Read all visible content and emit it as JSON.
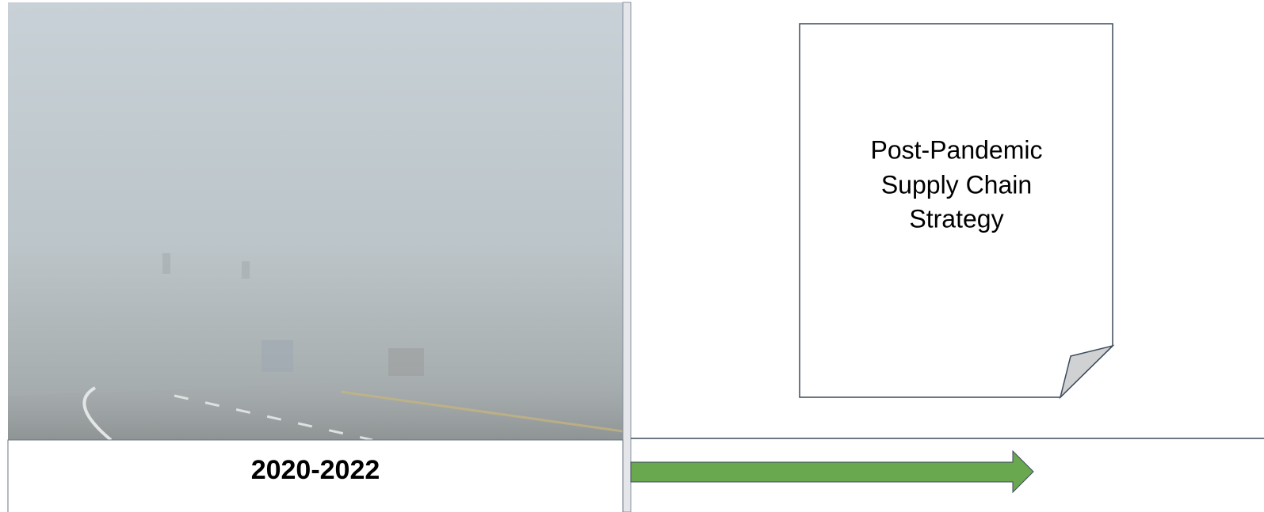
{
  "caption": "2020-2022",
  "document": {
    "lines": [
      "Post-Pandemic",
      "Supply Chain",
      "Strategy"
    ]
  }
}
